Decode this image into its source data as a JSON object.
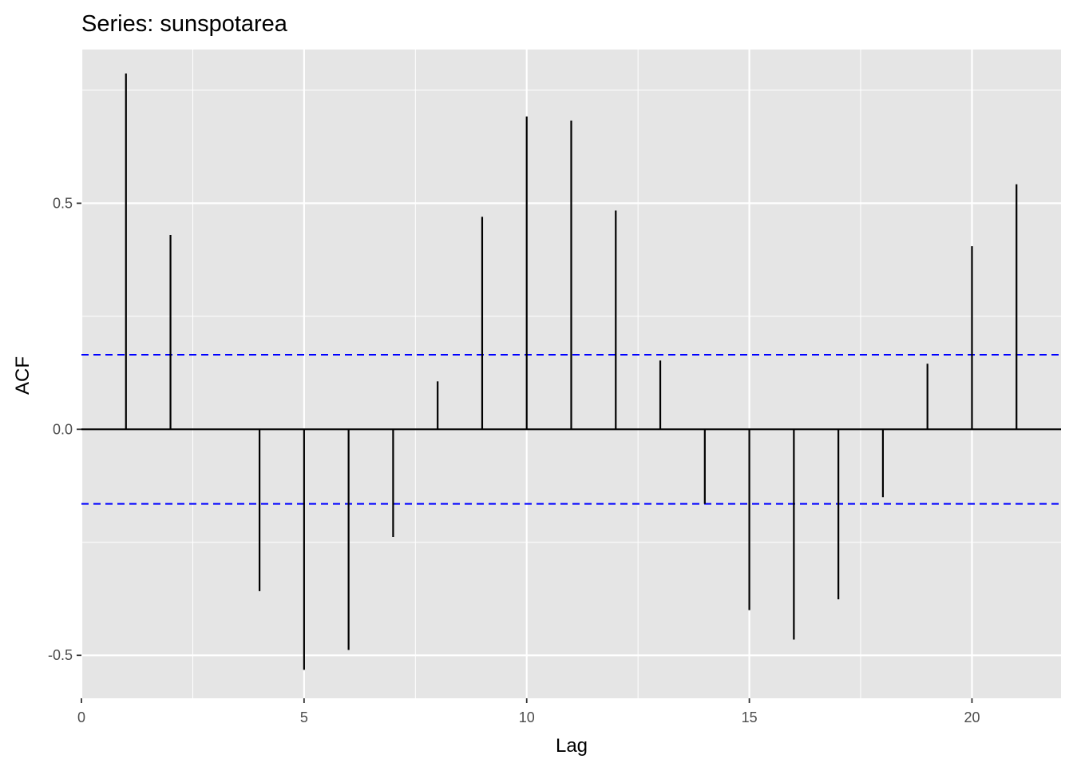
{
  "chart_data": {
    "type": "bar",
    "subtype": "acf-stem",
    "title": "Series: sunspotarea",
    "xlabel": "Lag",
    "ylabel": "ACF",
    "xlim": [
      0,
      22
    ],
    "ylim": [
      -0.595,
      0.84
    ],
    "x_ticks": [
      0,
      5,
      10,
      15,
      20
    ],
    "x_tick_labels": [
      "0",
      "5",
      "10",
      "15",
      "20"
    ],
    "y_ticks": [
      -0.5,
      0.0,
      0.5
    ],
    "y_tick_labels": [
      "-0.5",
      "0.0",
      "0.5"
    ],
    "grid": true,
    "x": [
      1,
      2,
      3,
      4,
      5,
      6,
      7,
      8,
      9,
      10,
      11,
      12,
      13,
      14,
      15,
      16,
      17,
      18,
      19,
      20,
      21
    ],
    "values": [
      0.787,
      0.43,
      0.0,
      -0.358,
      -0.532,
      -0.488,
      -0.238,
      0.106,
      0.47,
      0.692,
      0.683,
      0.484,
      0.152,
      -0.165,
      -0.4,
      -0.465,
      -0.376,
      -0.15,
      0.145,
      0.405,
      0.542
    ],
    "confidence_bound": 0.165,
    "colors": {
      "panel": "#e5e5e5",
      "grid": "#ffffff",
      "bars": "#000000",
      "ci": "#0000ff",
      "tick_text": "#4d4d4d"
    }
  }
}
